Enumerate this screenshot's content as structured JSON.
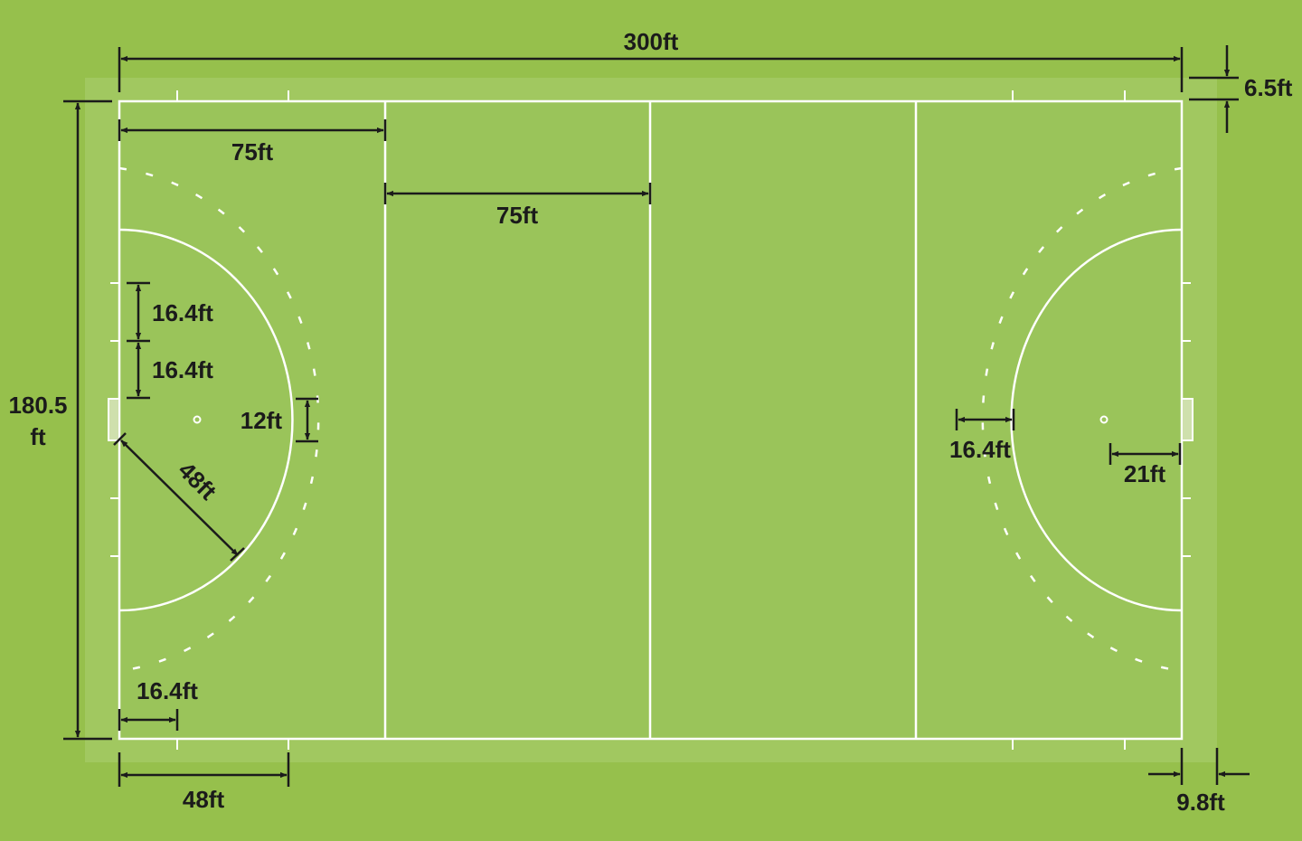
{
  "colors": {
    "background": "#96c04c",
    "runoff": "#a1c860",
    "pitch": "#9ac45a",
    "markings": "#ffffff",
    "dimension_lines": "#1b1b1b"
  },
  "labels": {
    "overall_length": "300ft",
    "overall_width_line1": "180.5",
    "overall_width_line2": "ft",
    "runoff_side": "6.5ft",
    "runoff_end": "9.8ft",
    "quarter_left": "75ft",
    "quarter_center": "75ft",
    "goal_offset_upper": "16.4ft",
    "goal_offset_lower": "16.4ft",
    "goal_width": "12ft",
    "circle_radius": "48ft",
    "dashed_circle_gap": "16.4ft",
    "penalty_spot": "21ft",
    "corner_mark": "16.4ft",
    "side_mark": "48ft"
  }
}
